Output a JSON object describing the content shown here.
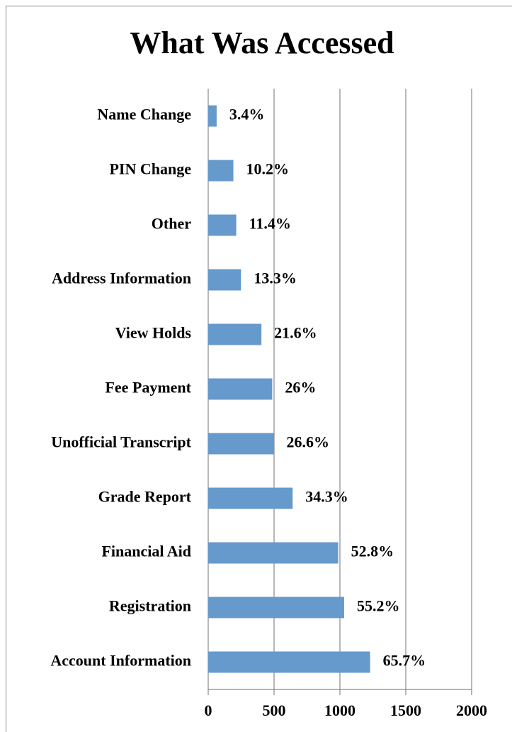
{
  "chart_data": {
    "type": "bar",
    "orientation": "horizontal",
    "title": "What Was Accessed",
    "categories": [
      "Name Change",
      "PIN Change",
      "Other",
      "Address Information",
      "View Holds",
      "Fee Payment",
      "Unofficial Transcript",
      "Grade Report",
      "Financial Aid",
      "Registration",
      "Account Information"
    ],
    "values": [
      64,
      191,
      213,
      249,
      404,
      486,
      497,
      641,
      987,
      1032,
      1229
    ],
    "value_labels": [
      "3.4%",
      "10.2%",
      "11.4%",
      "13.3%",
      "21.6%",
      "26%",
      "26.6%",
      "34.3%",
      "52.8%",
      "55.2%",
      "65.7%"
    ],
    "color": "#6699cc",
    "xlim": [
      0,
      2000
    ],
    "xticks": [
      0,
      500,
      1000,
      1500,
      2000
    ],
    "grid": true
  }
}
